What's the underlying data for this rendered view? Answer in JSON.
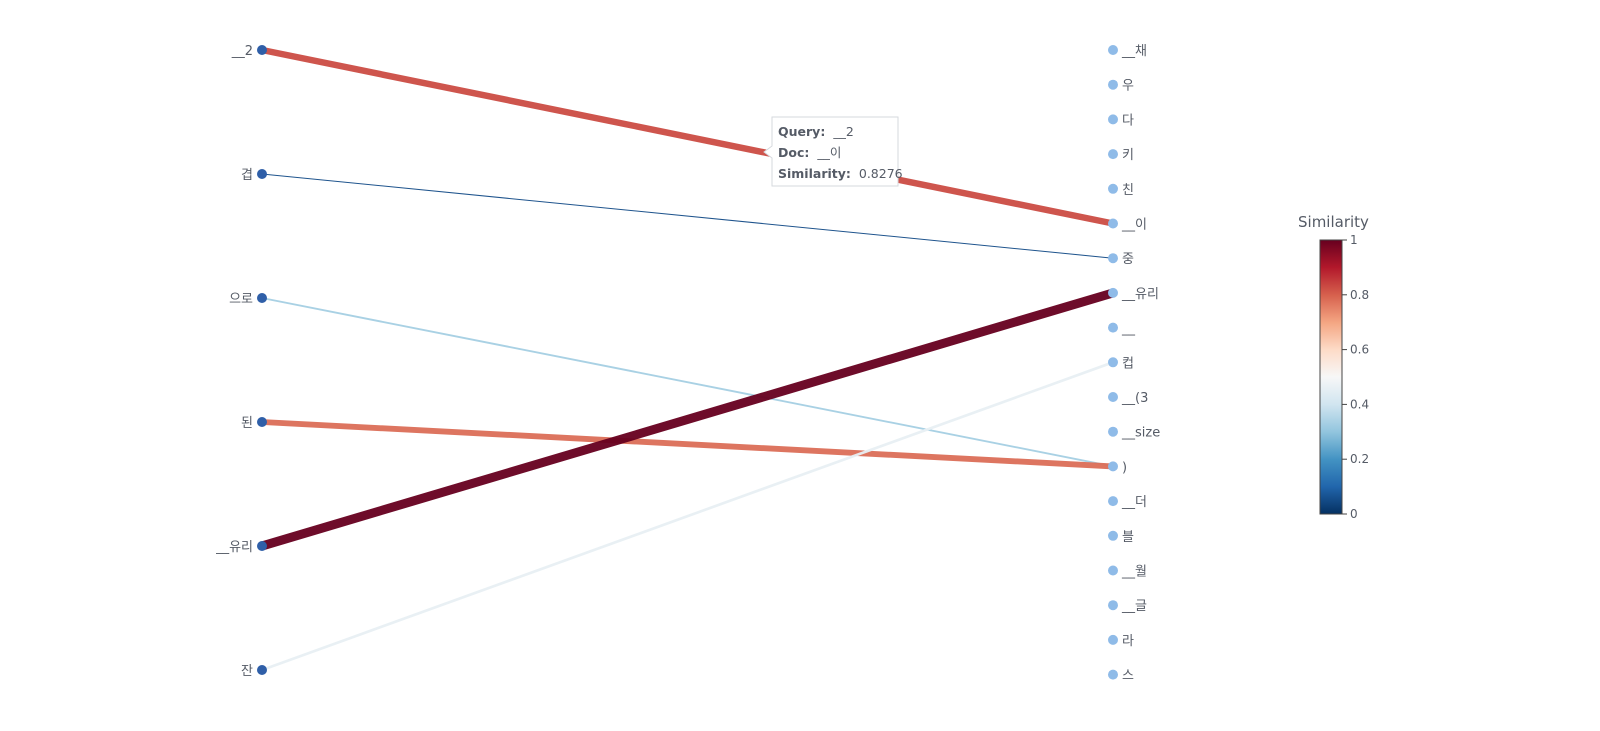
{
  "chart_data": {
    "type": "token-alignment",
    "query_tokens": [
      "__2",
      "겹",
      "으로",
      "된",
      "__유리",
      "잔"
    ],
    "doc_tokens": [
      "__채",
      "우",
      "다",
      "키",
      "친",
      "__이",
      "중",
      "__유리",
      "__",
      "컵",
      "__(3",
      "__size",
      ")",
      "__더",
      "블",
      "__월",
      "__글",
      "라",
      "스"
    ],
    "links": [
      {
        "query": 0,
        "doc": 5,
        "similarity": 0.8276
      },
      {
        "query": 1,
        "doc": 6,
        "similarity": 0.05
      },
      {
        "query": 2,
        "doc": 12,
        "similarity": 0.33
      },
      {
        "query": 3,
        "doc": 12,
        "similarity": 0.78
      },
      {
        "query": 4,
        "doc": 7,
        "similarity": 1.0
      },
      {
        "query": 5,
        "doc": 9,
        "similarity": 0.46
      }
    ],
    "colorbar": {
      "title": "Similarity",
      "range": [
        0,
        1
      ],
      "ticks": [
        "0",
        "0.2",
        "0.4",
        "0.6",
        "0.8",
        "1"
      ],
      "colorscale": [
        "#053061",
        "#2166ac",
        "#4393c3",
        "#92c5de",
        "#d1e5f0",
        "#f7f7f7",
        "#fddbc7",
        "#f4a582",
        "#d6604d",
        "#b2182b",
        "#67001f"
      ]
    },
    "tooltip": {
      "query_label": "Query:",
      "query_value": "__2",
      "doc_label": "Doc:",
      "doc_value": "__이",
      "similarity_label": "Similarity:",
      "similarity_value": "0.8276"
    },
    "colors": {
      "query_marker": "#2f5fa8",
      "doc_marker": "#8fbbe8",
      "label": "#555b66"
    }
  }
}
